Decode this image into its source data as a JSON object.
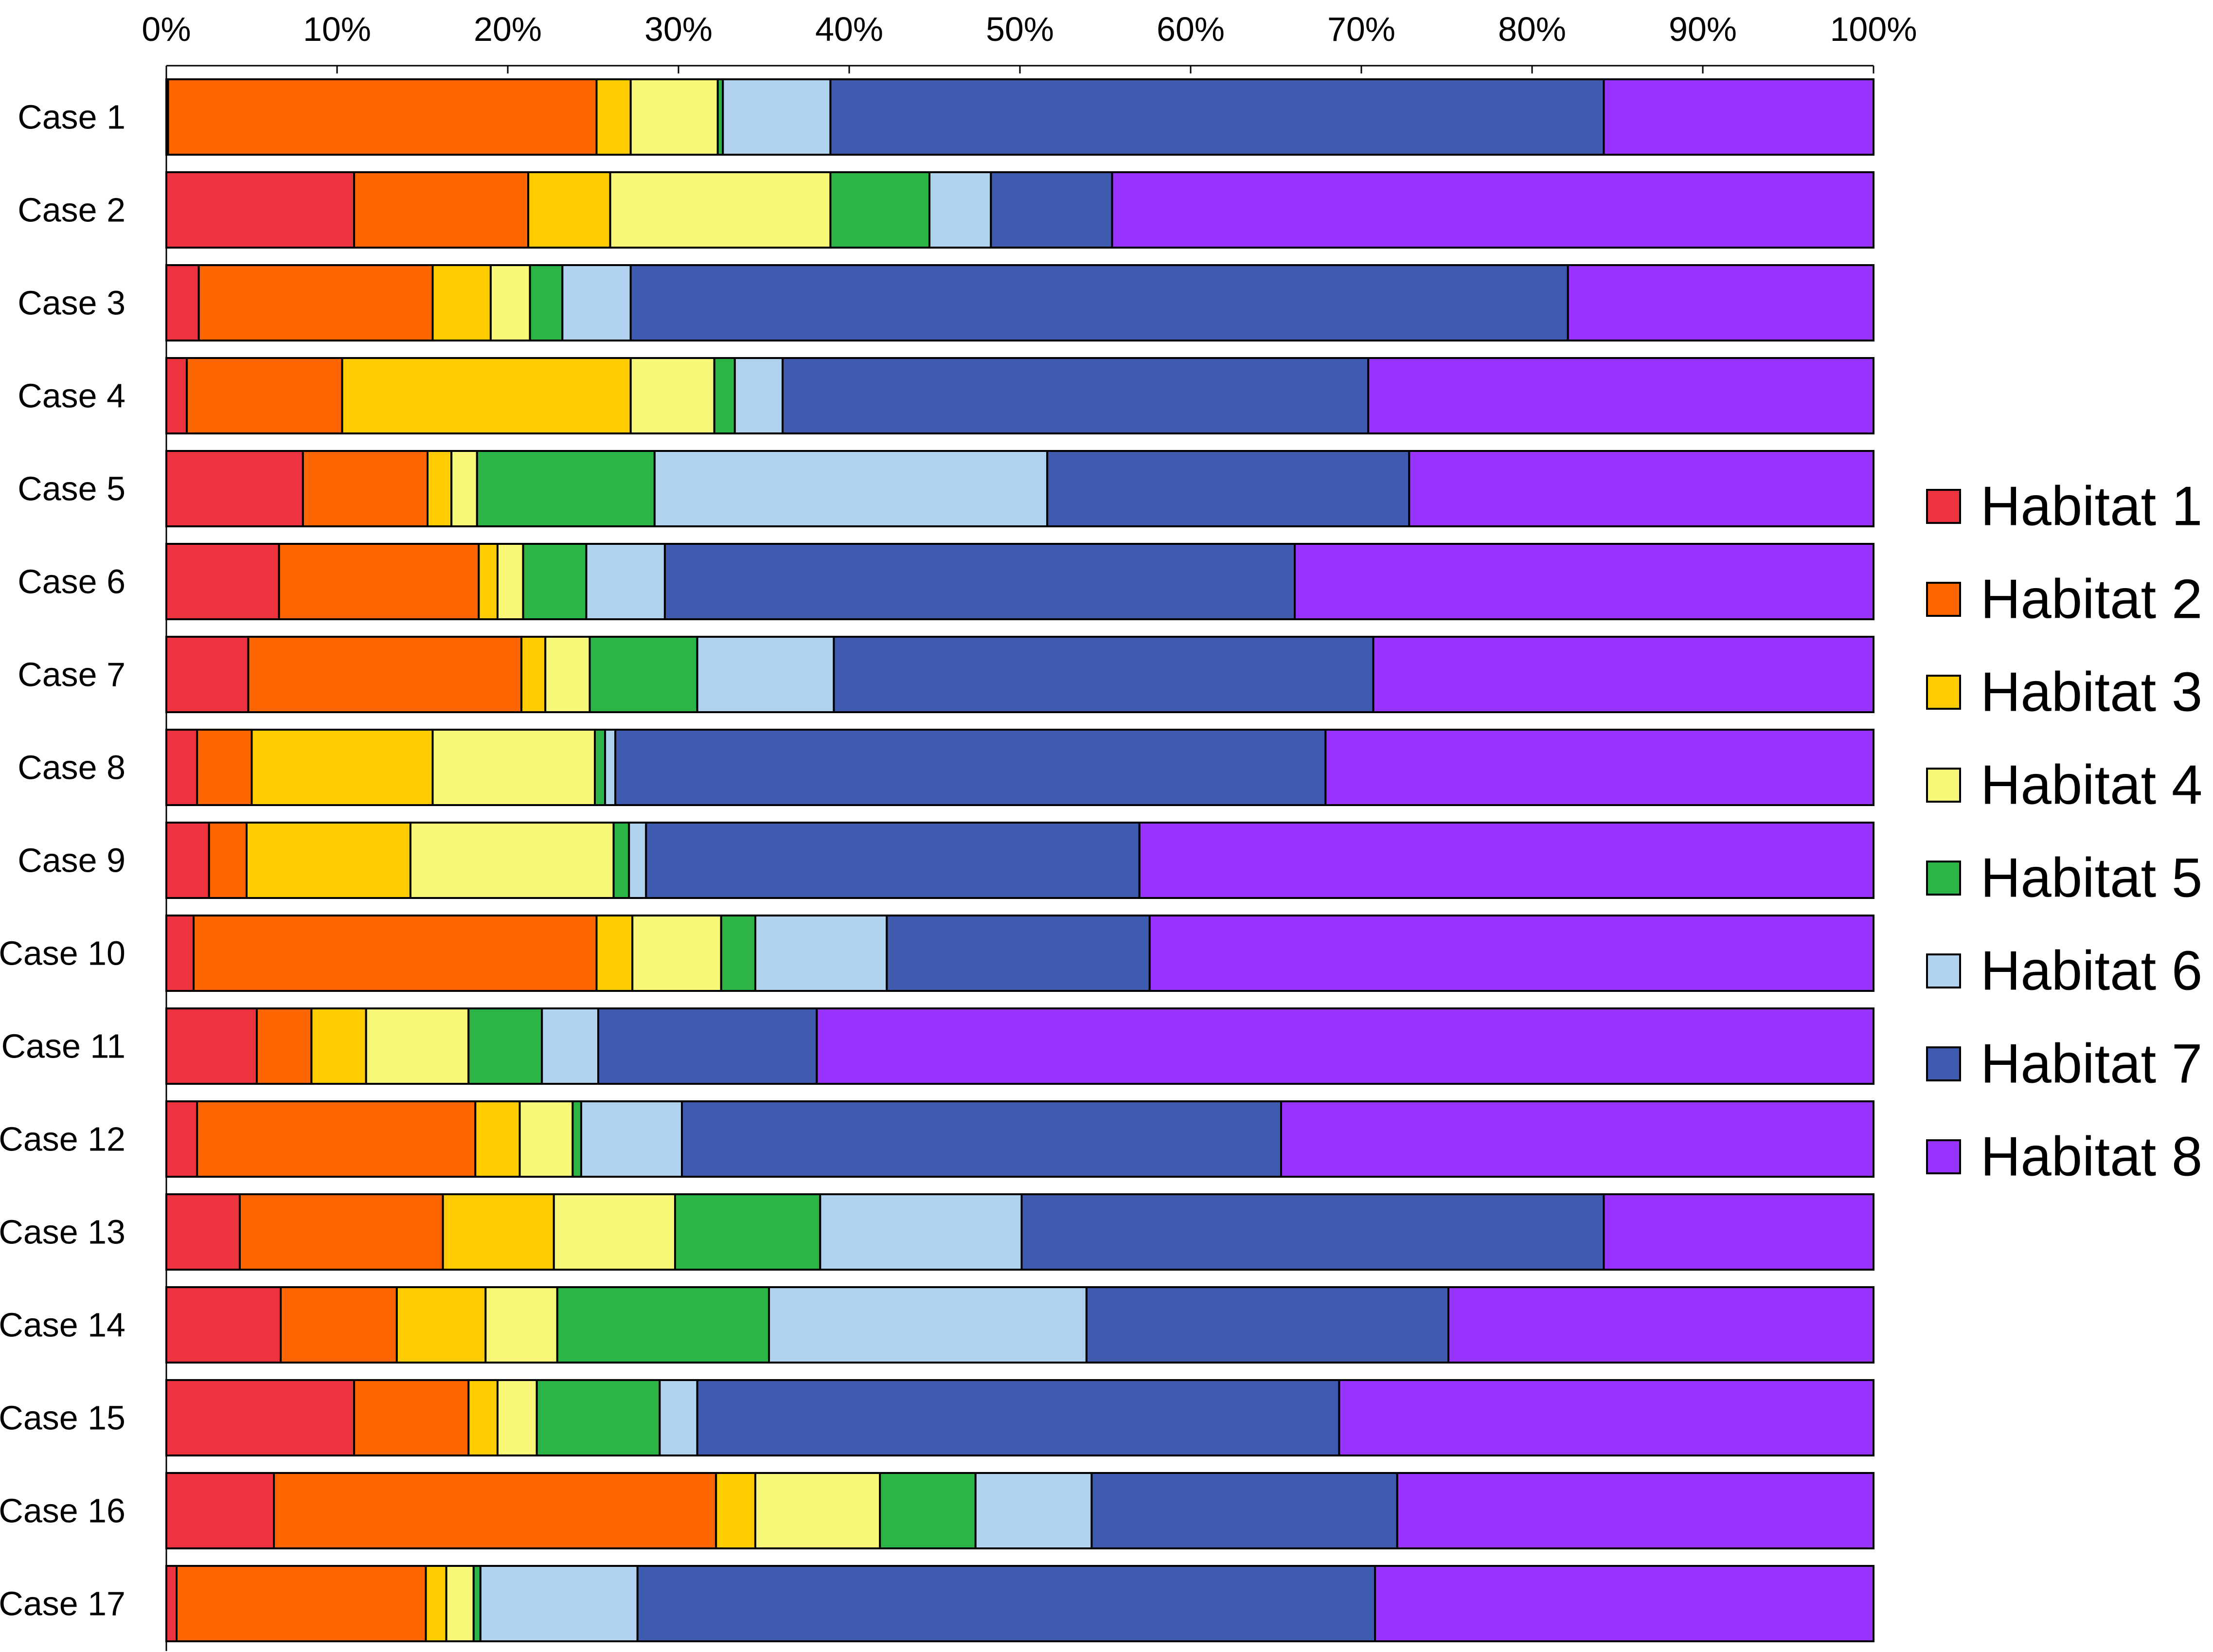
{
  "chart_data": {
    "type": "bar",
    "orientation": "horizontal",
    "stacking": "percent",
    "title": "",
    "xlabel": "",
    "ylabel": "",
    "xlim": [
      0,
      100
    ],
    "x_ticks": [
      "0%",
      "10%",
      "20%",
      "30%",
      "40%",
      "50%",
      "60%",
      "70%",
      "80%",
      "90%",
      "100%"
    ],
    "grid": false,
    "legend_position": "right",
    "categories": [
      "Case 1",
      "Case 2",
      "Case 3",
      "Case 4",
      "Case 5",
      "Case 6",
      "Case 7",
      "Case 8",
      "Case 9",
      "Case 10",
      "Case 11",
      "Case 12",
      "Case 13",
      "Case 14",
      "Case 15",
      "Case 16",
      "Case 17"
    ],
    "series": [
      {
        "name": "Habitat 1",
        "color": "#ee3340",
        "values": [
          0.1,
          11.0,
          1.9,
          1.2,
          8.0,
          6.6,
          4.8,
          1.8,
          2.5,
          1.6,
          5.3,
          1.8,
          4.3,
          6.7,
          11.0,
          6.3,
          0.6
        ]
      },
      {
        "name": "Habitat 2",
        "color": "#ff6600",
        "values": [
          25.1,
          10.2,
          13.7,
          9.1,
          7.3,
          11.7,
          16.0,
          3.2,
          2.2,
          23.6,
          3.2,
          16.3,
          11.9,
          6.8,
          6.7,
          25.9,
          14.6
        ]
      },
      {
        "name": "Habitat 3",
        "color": "#ffcc00",
        "values": [
          2.0,
          4.8,
          3.4,
          16.9,
          1.4,
          1.1,
          1.4,
          10.6,
          9.6,
          2.1,
          3.2,
          2.6,
          6.5,
          5.2,
          1.7,
          2.3,
          1.2
        ]
      },
      {
        "name": "Habitat 4",
        "color": "#f8f878",
        "values": [
          5.1,
          12.9,
          2.3,
          4.9,
          1.5,
          1.5,
          2.6,
          9.5,
          11.9,
          5.2,
          6.0,
          3.1,
          7.1,
          4.2,
          2.3,
          7.3,
          1.6
        ]
      },
      {
        "name": "Habitat 5",
        "color": "#2db446",
        "values": [
          0.3,
          5.8,
          1.9,
          1.2,
          10.4,
          3.7,
          6.3,
          0.6,
          0.9,
          2.0,
          4.3,
          0.5,
          8.5,
          12.4,
          7.2,
          5.6,
          0.4
        ]
      },
      {
        "name": "Habitat 6",
        "color": "#b0d2ee",
        "values": [
          6.3,
          3.6,
          4.0,
          2.8,
          23.0,
          4.6,
          8.0,
          0.6,
          1.0,
          7.7,
          3.3,
          5.9,
          11.8,
          18.6,
          2.2,
          6.8,
          9.2
        ]
      },
      {
        "name": "Habitat 7",
        "color": "#3f5bb0",
        "values": [
          45.3,
          7.1,
          54.9,
          34.3,
          21.2,
          36.9,
          31.6,
          41.6,
          28.9,
          15.4,
          12.8,
          35.1,
          34.1,
          21.2,
          37.6,
          17.9,
          43.2
        ]
      },
      {
        "name": "Habitat 8",
        "color": "#9933ff",
        "values": [
          15.8,
          44.6,
          17.9,
          29.6,
          27.2,
          33.9,
          29.3,
          32.1,
          43.0,
          42.4,
          61.9,
          34.7,
          15.8,
          24.9,
          31.3,
          27.9,
          29.2
        ]
      }
    ]
  }
}
